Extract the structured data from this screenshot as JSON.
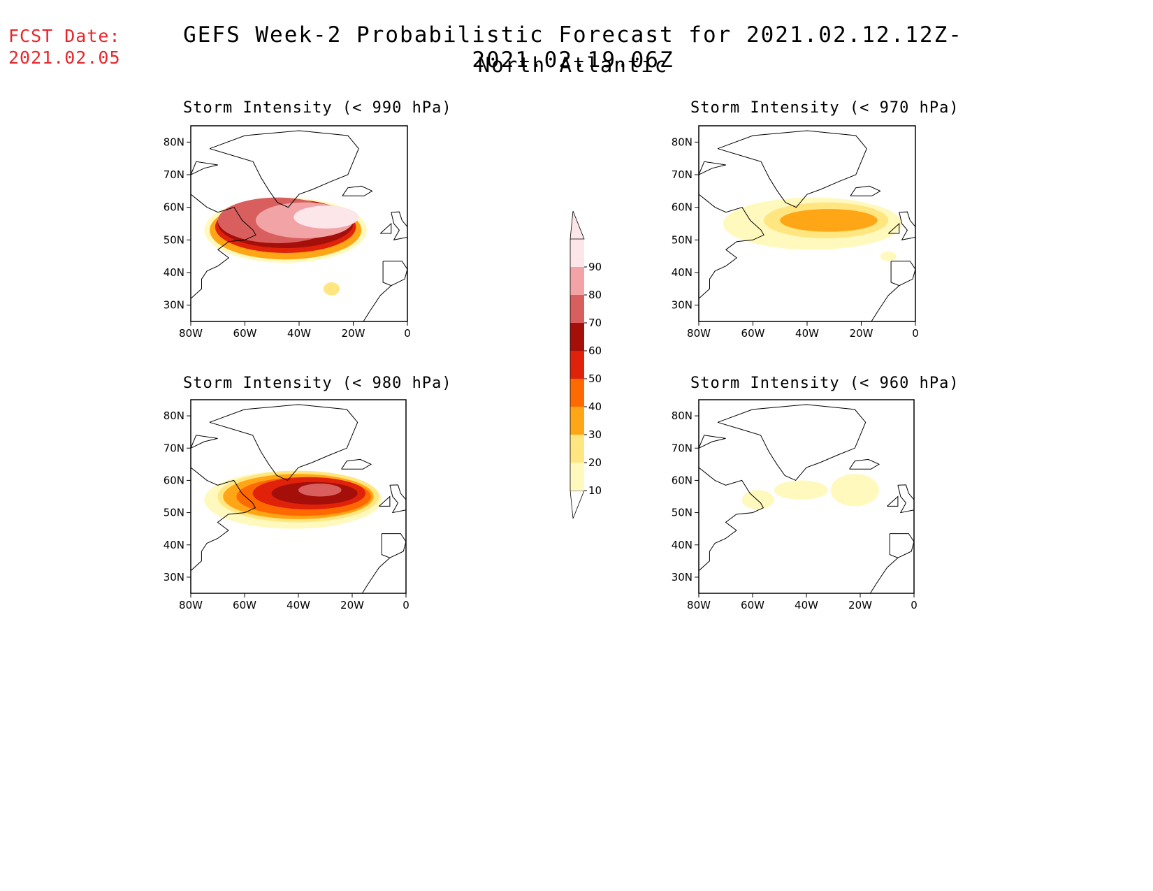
{
  "header": {
    "fcst_label": "FCST Date:",
    "fcst_date": "2021.02.05",
    "title": "GEFS Week-2 Probabilistic Forecast for 2021.02.12.12Z-2021.02.19.06Z",
    "subtitle": "North Atlantic"
  },
  "axes": {
    "lat_ticks": [
      "30N",
      "40N",
      "50N",
      "60N",
      "70N",
      "80N"
    ],
    "lon_ticks": [
      "80W",
      "60W",
      "40W",
      "20W",
      "0"
    ]
  },
  "colorbar": {
    "levels": [
      "10",
      "20",
      "30",
      "40",
      "50",
      "60",
      "70",
      "80",
      "90"
    ],
    "colors": [
      "#fff9be",
      "#ffe680",
      "#ffa616",
      "#ff6a00",
      "#e0220b",
      "#a50f0a",
      "#d95f5f",
      "#f1a3a6",
      "#fde6ea"
    ]
  },
  "panels": [
    {
      "title": "Storm Intensity (< 990 hPa)",
      "blobs": [
        {
          "lon": -45,
          "lat": 53,
          "rx": 30,
          "ry": 10,
          "level": 0
        },
        {
          "lon": -45,
          "lat": 53,
          "rx": 28,
          "ry": 9,
          "level": 2
        },
        {
          "lon": -45,
          "lat": 54,
          "rx": 26,
          "ry": 8,
          "level": 4
        },
        {
          "lon": -45,
          "lat": 55,
          "rx": 25,
          "ry": 7.5,
          "level": 5
        },
        {
          "lon": -48,
          "lat": 56,
          "rx": 22,
          "ry": 7,
          "level": 6
        },
        {
          "lon": -38,
          "lat": 56,
          "rx": 18,
          "ry": 5.5,
          "level": 7
        },
        {
          "lon": -30,
          "lat": 57,
          "rx": 12,
          "ry": 3.5,
          "level": 8
        },
        {
          "lon": -28,
          "lat": 35,
          "rx": 3,
          "ry": 2,
          "level": 1
        }
      ]
    },
    {
      "title": "Storm Intensity (< 970 hPa)",
      "blobs": [
        {
          "lon": -38,
          "lat": 55,
          "rx": 33,
          "ry": 8,
          "level": 0
        },
        {
          "lon": -33,
          "lat": 56,
          "rx": 23,
          "ry": 5.5,
          "level": 1
        },
        {
          "lon": -32,
          "lat": 56,
          "rx": 18,
          "ry": 3.5,
          "level": 2
        },
        {
          "lon": -10,
          "lat": 45,
          "rx": 3,
          "ry": 1.5,
          "level": 0
        }
      ]
    },
    {
      "title": "Storm Intensity (< 980 hPa)",
      "blobs": [
        {
          "lon": -42,
          "lat": 54,
          "rx": 33,
          "ry": 9,
          "level": 0
        },
        {
          "lon": -40,
          "lat": 55,
          "rx": 30,
          "ry": 8,
          "level": 1
        },
        {
          "lon": -40,
          "lat": 55,
          "rx": 28,
          "ry": 7,
          "level": 2
        },
        {
          "lon": -38,
          "lat": 55,
          "rx": 25,
          "ry": 6,
          "level": 3
        },
        {
          "lon": -36,
          "lat": 56,
          "rx": 21,
          "ry": 5,
          "level": 4
        },
        {
          "lon": -34,
          "lat": 56,
          "rx": 16,
          "ry": 3.5,
          "level": 5
        },
        {
          "lon": -32,
          "lat": 57,
          "rx": 8,
          "ry": 2,
          "level": 6
        }
      ]
    },
    {
      "title": "Storm Intensity (< 960 hPa)",
      "blobs": [
        {
          "lon": -22,
          "lat": 57,
          "rx": 9,
          "ry": 5,
          "level": 0
        },
        {
          "lon": -42,
          "lat": 57,
          "rx": 10,
          "ry": 3,
          "level": 0
        },
        {
          "lon": -58,
          "lat": 54,
          "rx": 6,
          "ry": 3,
          "level": 0
        }
      ]
    }
  ]
}
